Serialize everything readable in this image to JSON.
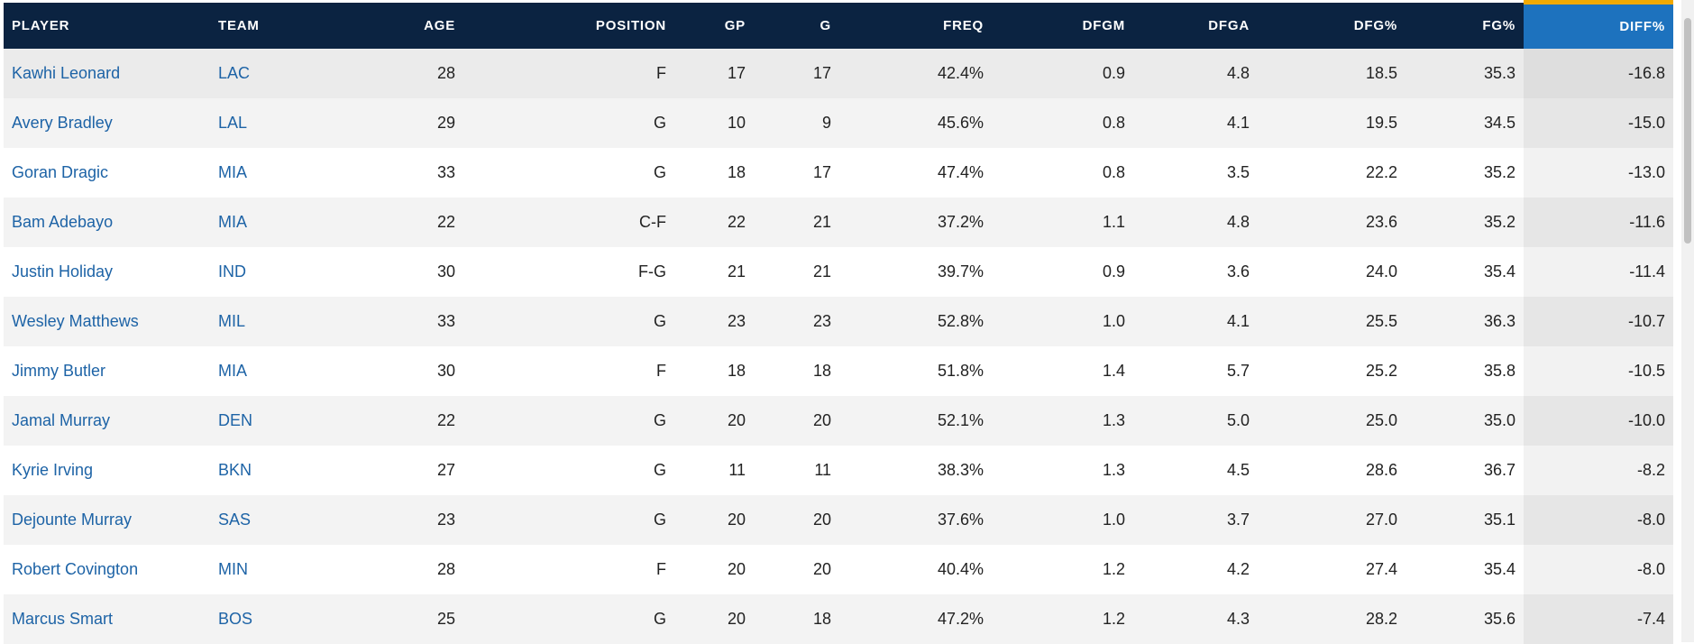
{
  "table": {
    "columns": [
      {
        "key": "player",
        "label": "PLAYER",
        "align": "left"
      },
      {
        "key": "team",
        "label": "TEAM",
        "align": "left"
      },
      {
        "key": "age",
        "label": "AGE",
        "align": "right"
      },
      {
        "key": "position",
        "label": "POSITION",
        "align": "right"
      },
      {
        "key": "gp",
        "label": "GP",
        "align": "right"
      },
      {
        "key": "g",
        "label": "G",
        "align": "right"
      },
      {
        "key": "freq",
        "label": "FREQ",
        "align": "right"
      },
      {
        "key": "dfgm",
        "label": "DFGM",
        "align": "right"
      },
      {
        "key": "dfga",
        "label": "DFGA",
        "align": "right"
      },
      {
        "key": "dfg_pct",
        "label": "DFG%",
        "align": "right"
      },
      {
        "key": "fg_pct",
        "label": "FG%",
        "align": "right"
      },
      {
        "key": "diff_pct",
        "label": "DIFF%",
        "align": "right",
        "sorted": true
      }
    ],
    "rows": [
      {
        "player": "Kawhi Leonard",
        "team": "LAC",
        "age": "28",
        "position": "F",
        "gp": "17",
        "g": "17",
        "freq": "42.4%",
        "dfgm": "0.9",
        "dfga": "4.8",
        "dfg_pct": "18.5",
        "fg_pct": "35.3",
        "diff_pct": "-16.8"
      },
      {
        "player": "Avery Bradley",
        "team": "LAL",
        "age": "29",
        "position": "G",
        "gp": "10",
        "g": "9",
        "freq": "45.6%",
        "dfgm": "0.8",
        "dfga": "4.1",
        "dfg_pct": "19.5",
        "fg_pct": "34.5",
        "diff_pct": "-15.0"
      },
      {
        "player": "Goran Dragic",
        "team": "MIA",
        "age": "33",
        "position": "G",
        "gp": "18",
        "g": "17",
        "freq": "47.4%",
        "dfgm": "0.8",
        "dfga": "3.5",
        "dfg_pct": "22.2",
        "fg_pct": "35.2",
        "diff_pct": "-13.0"
      },
      {
        "player": "Bam Adebayo",
        "team": "MIA",
        "age": "22",
        "position": "C-F",
        "gp": "22",
        "g": "21",
        "freq": "37.2%",
        "dfgm": "1.1",
        "dfga": "4.8",
        "dfg_pct": "23.6",
        "fg_pct": "35.2",
        "diff_pct": "-11.6"
      },
      {
        "player": "Justin Holiday",
        "team": "IND",
        "age": "30",
        "position": "F-G",
        "gp": "21",
        "g": "21",
        "freq": "39.7%",
        "dfgm": "0.9",
        "dfga": "3.6",
        "dfg_pct": "24.0",
        "fg_pct": "35.4",
        "diff_pct": "-11.4"
      },
      {
        "player": "Wesley Matthews",
        "team": "MIL",
        "age": "33",
        "position": "G",
        "gp": "23",
        "g": "23",
        "freq": "52.8%",
        "dfgm": "1.0",
        "dfga": "4.1",
        "dfg_pct": "25.5",
        "fg_pct": "36.3",
        "diff_pct": "-10.7"
      },
      {
        "player": "Jimmy Butler",
        "team": "MIA",
        "age": "30",
        "position": "F",
        "gp": "18",
        "g": "18",
        "freq": "51.8%",
        "dfgm": "1.4",
        "dfga": "5.7",
        "dfg_pct": "25.2",
        "fg_pct": "35.8",
        "diff_pct": "-10.5"
      },
      {
        "player": "Jamal Murray",
        "team": "DEN",
        "age": "22",
        "position": "G",
        "gp": "20",
        "g": "20",
        "freq": "52.1%",
        "dfgm": "1.3",
        "dfga": "5.0",
        "dfg_pct": "25.0",
        "fg_pct": "35.0",
        "diff_pct": "-10.0"
      },
      {
        "player": "Kyrie Irving",
        "team": "BKN",
        "age": "27",
        "position": "G",
        "gp": "11",
        "g": "11",
        "freq": "38.3%",
        "dfgm": "1.3",
        "dfga": "4.5",
        "dfg_pct": "28.6",
        "fg_pct": "36.7",
        "diff_pct": "-8.2"
      },
      {
        "player": "Dejounte Murray",
        "team": "SAS",
        "age": "23",
        "position": "G",
        "gp": "20",
        "g": "20",
        "freq": "37.6%",
        "dfgm": "1.0",
        "dfga": "3.7",
        "dfg_pct": "27.0",
        "fg_pct": "35.1",
        "diff_pct": "-8.0"
      },
      {
        "player": "Robert Covington",
        "team": "MIN",
        "age": "28",
        "position": "F",
        "gp": "20",
        "g": "20",
        "freq": "40.4%",
        "dfgm": "1.2",
        "dfga": "4.2",
        "dfg_pct": "27.4",
        "fg_pct": "35.4",
        "diff_pct": "-8.0"
      },
      {
        "player": "Marcus Smart",
        "team": "BOS",
        "age": "25",
        "position": "G",
        "gp": "20",
        "g": "18",
        "freq": "47.2%",
        "dfgm": "1.2",
        "dfga": "4.3",
        "dfg_pct": "28.2",
        "fg_pct": "35.6",
        "diff_pct": "-7.4"
      }
    ]
  },
  "colors": {
    "header_bg": "#0b2341",
    "sorted_header_bg": "#1d72be",
    "sorted_header_accent": "#f2a900",
    "link": "#1d63a6"
  }
}
